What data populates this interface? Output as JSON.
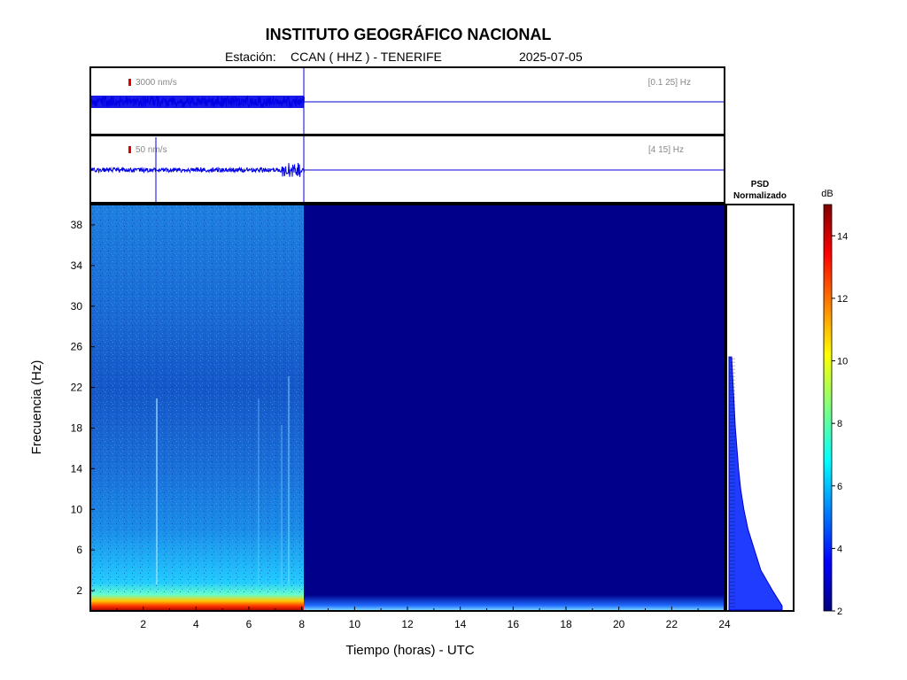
{
  "header": {
    "title": "INSTITUTO GEOGRÁFICO NACIONAL",
    "station_label": "Estación:",
    "station": "CCAN ( HHZ ) - TENERIFE",
    "date": "2025-07-05"
  },
  "colors": {
    "trace": "#0000e6",
    "spectrogram_low": "#00008b",
    "scale_bar": "#e60000"
  },
  "chart_data": [
    {
      "type": "line",
      "panel": "seismogram-broadband",
      "amplitude_scale": "3000 nm/s",
      "band": "[0.1 25] Hz",
      "x_range": [
        0,
        24
      ],
      "data_until_hours": 8.1,
      "events": [
        {
          "t": 2.5,
          "amplitude": "small"
        }
      ]
    },
    {
      "type": "line",
      "panel": "seismogram-filtered",
      "amplitude_scale": "50 nm/s",
      "band": "[4 15] Hz",
      "x_range": [
        0,
        24
      ],
      "data_until_hours": 8.1,
      "events": [
        {
          "t": 2.5,
          "amplitude": "spike"
        },
        {
          "t": 7.6,
          "amplitude": "burst"
        }
      ]
    },
    {
      "type": "heatmap",
      "panel": "spectrogram",
      "xlabel": "Tiempo (horas) - UTC",
      "ylabel": "Frecuencia  (Hz)",
      "xlim": [
        0,
        24
      ],
      "ylim": [
        0,
        40
      ],
      "xticks": [
        "2",
        "4",
        "6",
        "8",
        "10",
        "12",
        "14",
        "16",
        "18",
        "20",
        "22",
        "24"
      ],
      "yticks": [
        "2",
        "6",
        "10",
        "14",
        "18",
        "22",
        "26",
        "30",
        "34",
        "38"
      ],
      "data_until_hours": 8.1
    },
    {
      "type": "area",
      "panel": "psd",
      "title_line1": "PSD",
      "title_line2": "Normalizado",
      "freq": [
        0.5,
        2,
        4,
        6,
        8,
        10,
        12,
        14,
        16,
        18,
        20,
        22,
        24,
        25
      ],
      "level": [
        1.0,
        0.82,
        0.6,
        0.48,
        0.36,
        0.28,
        0.22,
        0.18,
        0.15,
        0.12,
        0.1,
        0.08,
        0.06,
        0.05
      ]
    }
  ],
  "colorbar": {
    "unit": "dB",
    "min": 2,
    "max": 15,
    "ticks": [
      "2",
      "4",
      "6",
      "8",
      "10",
      "12",
      "14"
    ]
  }
}
